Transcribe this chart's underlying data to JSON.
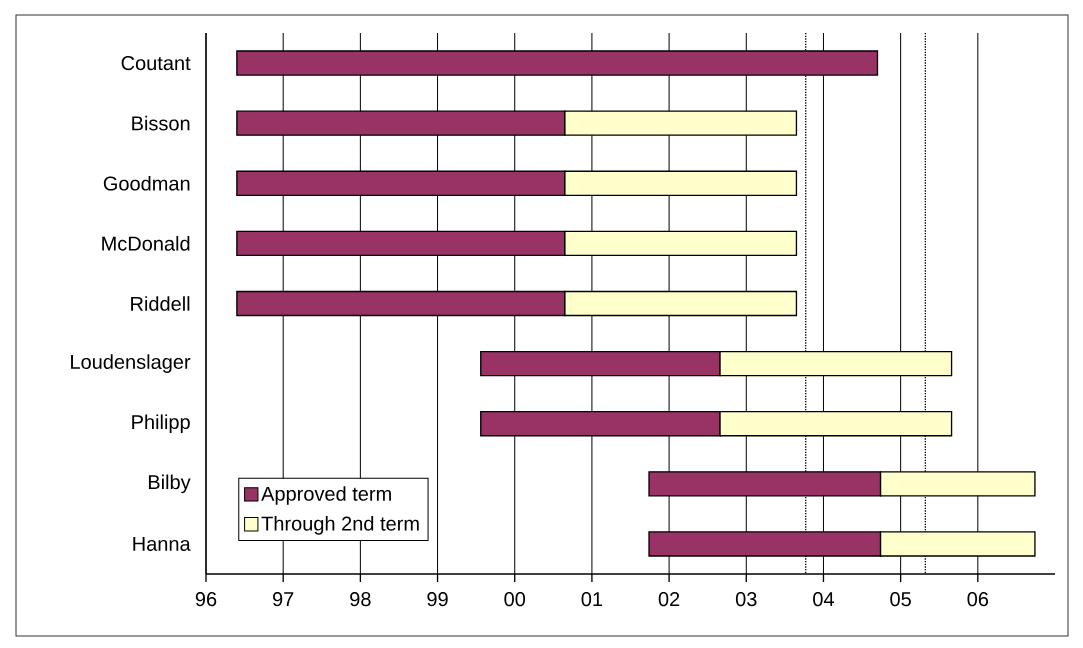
{
  "chart_data": {
    "type": "bar",
    "orientation": "horizontal",
    "categories": [
      "Coutant",
      "Bisson",
      "Goodman",
      "McDonald",
      "Riddell",
      "Loudenslager",
      "Philipp",
      "Bilby",
      "Hanna"
    ],
    "series": [
      {
        "name": "Approved term",
        "color": "#993366",
        "base": [
          1996.4,
          1996.4,
          1996.4,
          1996.4,
          1996.4,
          1999.56,
          1999.56,
          2001.74,
          2001.74
        ],
        "values": [
          8.3,
          4.25,
          4.25,
          4.25,
          4.25,
          3.1,
          3.1,
          3.0,
          3.0
        ]
      },
      {
        "name": "Through 2nd term",
        "color": "#ffffcc",
        "base": [
          null,
          2000.65,
          2000.65,
          2000.65,
          2000.65,
          2002.66,
          2002.66,
          2004.74,
          2004.74
        ],
        "values": [
          null,
          3.0,
          3.0,
          3.0,
          3.0,
          3.0,
          3.0,
          2.0,
          2.0
        ]
      }
    ],
    "xlim": [
      1996,
      2007
    ],
    "xticks": [
      {
        "value": 1996,
        "label": "96"
      },
      {
        "value": 1997,
        "label": "97"
      },
      {
        "value": 1998,
        "label": "98"
      },
      {
        "value": 1999,
        "label": "99"
      },
      {
        "value": 2000,
        "label": "00"
      },
      {
        "value": 2001,
        "label": "01"
      },
      {
        "value": 2002,
        "label": "02"
      },
      {
        "value": 2003,
        "label": "03"
      },
      {
        "value": 2004,
        "label": "04"
      },
      {
        "value": 2005,
        "label": "05"
      },
      {
        "value": 2006,
        "label": "06"
      }
    ],
    "ref_lines": [
      {
        "axis": "x",
        "value": 2003.77,
        "color": "#000000",
        "line_style": "dotted"
      },
      {
        "axis": "x",
        "value": 2005.32,
        "color": "#000000",
        "line_style": "dotted"
      }
    ],
    "grid": "x",
    "legend": "bottom left"
  }
}
